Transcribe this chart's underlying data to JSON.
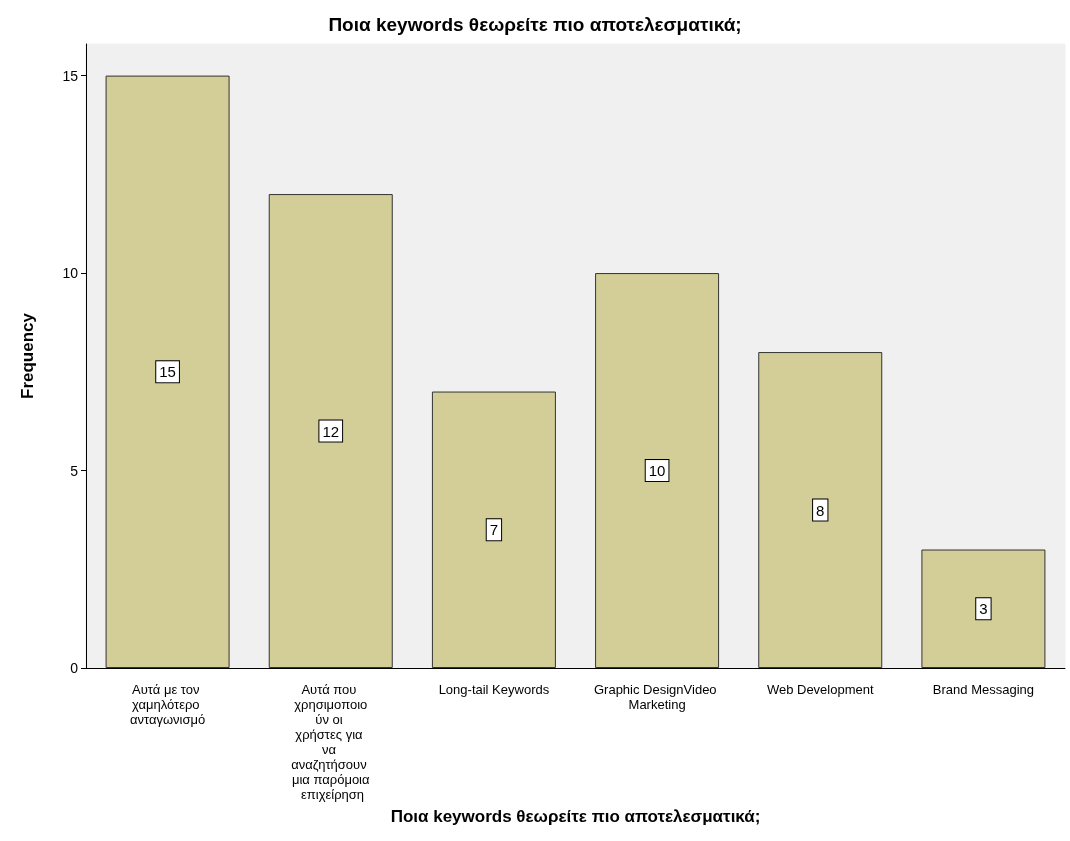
{
  "chart_data": {
    "type": "bar",
    "title": "Ποια keywords θεωρείτε πιο αποτελεσματικά;",
    "xlabel": "Ποια keywords θεωρείτε πιο αποτελεσματικά;",
    "ylabel": "Frequency",
    "categories": [
      "Αυτά με τον χαμηλότερο ανταγωνισμό",
      "Αυτά που χρησιμοποιούν οι χρήστες για να αναζητήσουν μια παρόμοια επιχείρηση",
      "Long-tail Keywords",
      "Graphic DesignVideo Marketing",
      "Web Development",
      "Brand Messaging"
    ],
    "values": [
      15,
      12,
      7,
      10,
      8,
      3
    ],
    "color": "#d3ce97",
    "ylim": [
      0,
      15.8
    ],
    "yticks": [
      0,
      5,
      10,
      15
    ],
    "data_labels": true,
    "grid": false
  }
}
